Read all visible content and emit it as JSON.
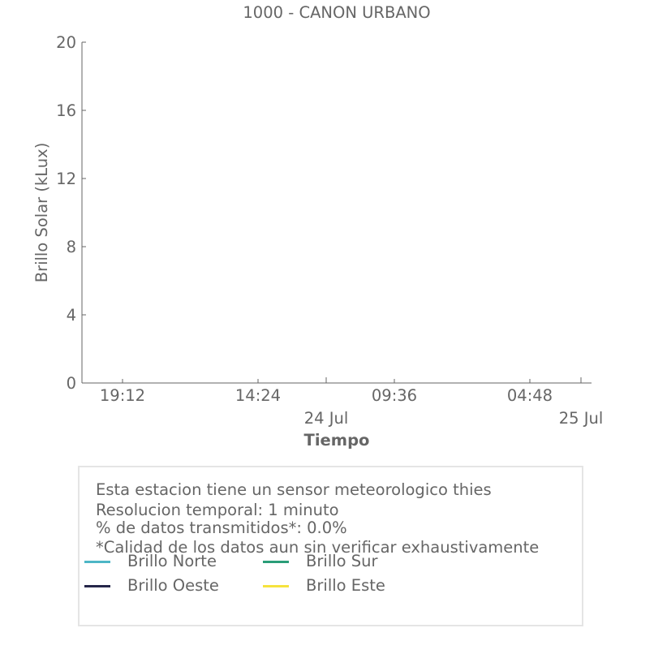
{
  "chart_data": {
    "type": "line",
    "title": "1000 - CANON URBANO",
    "xlabel": "Tiempo",
    "ylabel": "Brillo Solar (kLux)",
    "ylim": [
      0,
      20
    ],
    "yticks": [
      "0",
      "4",
      "8",
      "12",
      "16",
      "20"
    ],
    "xticks_major": [
      "19:12",
      "14:24",
      "09:36",
      "04:48"
    ],
    "xticks_minor": [
      "24 Jul",
      "25 Jul"
    ],
    "grid": false,
    "legend_placement": "bottom",
    "series": [
      {
        "name": "Brillo Norte",
        "color": "#4db6c6",
        "values": []
      },
      {
        "name": "Brillo Sur",
        "color": "#2a9d78",
        "values": []
      },
      {
        "name": "Brillo Oeste",
        "color": "#25264a",
        "values": []
      },
      {
        "name": "Brillo Este",
        "color": "#f6e33e",
        "values": []
      }
    ]
  },
  "info": {
    "lines": [
      "Esta estacion tiene un sensor meteorologico thies",
      "Resolucion temporal: 1 minuto",
      "% de datos transmitidos*: 0.0%",
      "*Calidad de los datos aun sin verificar exhaustivamente"
    ]
  }
}
